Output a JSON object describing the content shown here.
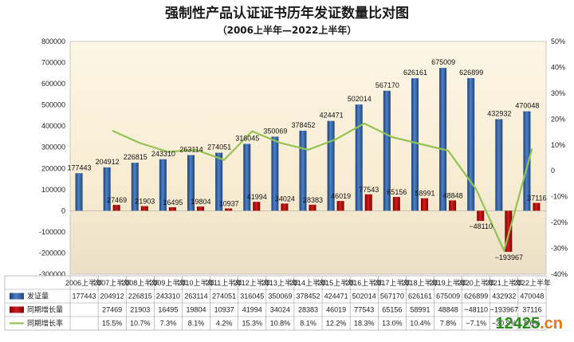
{
  "chart_data": {
    "type": "bar",
    "title": "强制性产品认证证书历年发证数量比对图",
    "subtitle": "（2006上半年—2022上半年）",
    "categories": [
      "2006上半年",
      "2007上半年",
      "2008上半年",
      "2009上半年",
      "2010上半年",
      "2011上半年",
      "2012上半年",
      "2013上半年",
      "2014上半年",
      "2015上半年",
      "2016上半年",
      "2017上半年",
      "2018上半年",
      "2019上半年",
      "2020上半年",
      "2021上半年",
      "2022上半年"
    ],
    "series": [
      {
        "name": "发证量",
        "type": "bar",
        "axis": "left",
        "color": "#2f5597",
        "values": [
          177443,
          204912,
          226815,
          243310,
          263114,
          274051,
          316045,
          350069,
          378452,
          424471,
          502014,
          567170,
          626161,
          675009,
          626899,
          432932,
          470048
        ],
        "labels": [
          "177443",
          "204912",
          "226815",
          "243310",
          "263114",
          "274051",
          "316045",
          "350069",
          "378452",
          "424471",
          "502014",
          "567170",
          "626161",
          "675009",
          "626899",
          "432932",
          "470048"
        ]
      },
      {
        "name": "同期增长量",
        "type": "bar",
        "axis": "left",
        "color": "#c00000",
        "values": [
          null,
          27469,
          21903,
          16495,
          19804,
          10937,
          41994,
          34024,
          28383,
          46019,
          77543,
          65156,
          58991,
          48848,
          -48110,
          -193967,
          37116
        ],
        "labels": [
          "",
          "27469",
          "21903",
          "16495",
          "19804",
          "10937",
          "41994",
          "34024",
          "28383",
          "46019",
          "77543",
          "65156",
          "58991",
          "48848",
          "−48110",
          "−193967",
          "37116"
        ]
      },
      {
        "name": "同期增长率",
        "type": "line",
        "axis": "right",
        "color": "#92c353",
        "values": [
          null,
          15.5,
          10.7,
          7.3,
          8.1,
          4.2,
          15.3,
          10.8,
          8.1,
          12.2,
          18.3,
          13.0,
          10.4,
          7.8,
          -7.1,
          -30.9,
          8.6
        ],
        "labels": [
          "",
          "15.5%",
          "10.7%",
          "7.3%",
          "8.1%",
          "4.2%",
          "15.3%",
          "10.8%",
          "8.1%",
          "12.2%",
          "18.3%",
          "13.0%",
          "10.4%",
          "7.8%",
          "−7.1%",
          "−30.9%",
          "8.6%"
        ]
      }
    ],
    "ylim": [
      -300000,
      800000
    ],
    "y_ticks": [
      "-300000",
      "-200000",
      "-100000",
      "0",
      "100000",
      "200000",
      "300000",
      "400000",
      "500000",
      "600000",
      "700000",
      "800000"
    ],
    "y2lim": [
      -40,
      50
    ],
    "y2_ticks": [
      "-40%",
      "-30%",
      "-20%",
      "-10%",
      "0",
      "10%",
      "20%",
      "30%",
      "40%",
      "50%"
    ],
    "legend": "data-table",
    "grid": false,
    "colors": {
      "plot_top": "#fdf3dd",
      "plot_bottom": "#ece0c6",
      "bar_top": "#4a7cc4",
      "line": "#92c353"
    }
  },
  "watermark": {
    "text": "12425.cn",
    "first": "12425",
    "second": ".cn",
    "first_color": "#2e8b22",
    "second_color": "#e07a10"
  }
}
